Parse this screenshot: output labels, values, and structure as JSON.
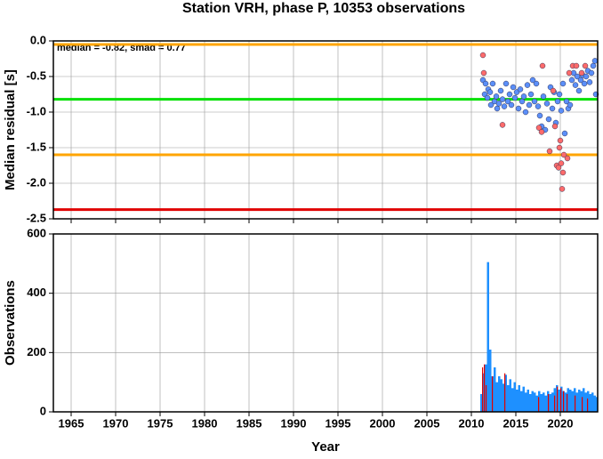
{
  "chart_data": [
    {
      "type": "scatter",
      "title": "Station VRH, phase P, 10353 observations",
      "ylabel": "Median residual [s]",
      "annotation": "median = -0.82, smad = 0.77",
      "xlim": [
        1963,
        2024.2
      ],
      "xticks": [
        1965,
        1970,
        1975,
        1980,
        1985,
        1990,
        1995,
        2000,
        2005,
        2010,
        2015,
        2020
      ],
      "ylim": [
        -2.5,
        0
      ],
      "yticks": [
        {
          "value": 0,
          "label": "0.0"
        },
        -0.5,
        {
          "value": -1,
          "label": "-1.0"
        },
        -1.5,
        {
          "value": -2,
          "label": "-2.0"
        },
        -2.5
      ],
      "grid": true,
      "reference_lines": [
        {
          "value": -0.05,
          "color": "#ffa500"
        },
        {
          "value": -0.82,
          "color": "#00e000"
        },
        {
          "value": -1.6,
          "color": "#ffa500"
        },
        {
          "value": -2.37,
          "color": "#e00000"
        }
      ],
      "series": [
        {
          "color": "#5b8ff9",
          "x": [
            2011.3,
            2011.5,
            2011.6,
            2011.8,
            2011.9,
            2012.1,
            2012.2,
            2012.4,
            2012.6,
            2012.8,
            2012.9,
            2013.1,
            2013.3,
            2013.5,
            2013.7,
            2013.9,
            2014.1,
            2014.3,
            2014.5,
            2014.7,
            2014.9,
            2015.1,
            2015.3,
            2015.5,
            2015.7,
            2015.9,
            2016.1,
            2016.3,
            2016.5,
            2016.7,
            2016.9,
            2017.1,
            2017.3,
            2017.5,
            2017.7,
            2017.9,
            2018.1,
            2018.3,
            2018.5,
            2018.7,
            2018.9,
            2019.1,
            2019.3,
            2019.5,
            2019.7,
            2019.9,
            2020.1,
            2020.3,
            2020.5,
            2020.7,
            2020.9,
            2021.1,
            2021.3,
            2021.5,
            2021.7,
            2021.9,
            2022.1,
            2022.3,
            2022.5,
            2022.7,
            2022.9,
            2023.1,
            2023.3,
            2023.5,
            2023.7,
            2023.9,
            2024.0
          ],
          "values": [
            -0.55,
            -0.75,
            -0.6,
            -0.8,
            -0.68,
            -0.72,
            -0.9,
            -0.6,
            -0.85,
            -0.78,
            -0.95,
            -0.88,
            -0.7,
            -0.82,
            -0.92,
            -0.6,
            -0.85,
            -0.75,
            -0.9,
            -0.65,
            -0.8,
            -0.72,
            -0.95,
            -0.68,
            -0.85,
            -0.78,
            -1.0,
            -0.62,
            -0.9,
            -0.75,
            -0.55,
            -0.85,
            -0.6,
            -0.92,
            -1.05,
            -1.2,
            -0.78,
            -1.25,
            -0.88,
            -1.1,
            -0.65,
            -0.95,
            -0.72,
            -1.15,
            -0.85,
            -0.75,
            -0.98,
            -0.6,
            -1.3,
            -0.85,
            -0.95,
            -0.9,
            -0.55,
            -0.45,
            -0.62,
            -0.5,
            -0.7,
            -0.55,
            -0.48,
            -0.6,
            -0.5,
            -0.42,
            -0.58,
            -0.45,
            -0.35,
            -0.28,
            -0.75
          ]
        },
        {
          "color": "#ff6b6b",
          "x": [
            2011.3,
            2011.4,
            2013.5,
            2017.6,
            2017.9,
            2018.0,
            2018.8,
            2019.2,
            2019.4,
            2019.6,
            2019.8,
            2019.9,
            2020.0,
            2020.1,
            2020.2,
            2020.3,
            2020.4,
            2020.8,
            2021.0,
            2021.4,
            2021.8,
            2022.4,
            2022.8
          ],
          "values": [
            -0.2,
            -0.45,
            -1.18,
            -1.22,
            -1.28,
            -0.35,
            -1.55,
            -0.7,
            -1.2,
            -1.75,
            -1.78,
            -1.5,
            -1.4,
            -1.72,
            -2.08,
            -1.85,
            -1.6,
            -1.65,
            -0.45,
            -0.35,
            -0.35,
            -0.45,
            -0.35
          ]
        }
      ]
    },
    {
      "type": "bar",
      "ylabel": "Observations",
      "xlabel": "Year",
      "xlim": [
        1963,
        2024.2
      ],
      "xticks": [
        1965,
        1970,
        1975,
        1980,
        1985,
        1990,
        1995,
        2000,
        2005,
        2010,
        2015,
        2020
      ],
      "ylim": [
        0,
        600
      ],
      "yticks": [
        0,
        200,
        400,
        600
      ],
      "grid": true,
      "series": [
        {
          "color": "#1e90ff",
          "width": 0.25,
          "x": [
            2011.0,
            2011.25,
            2011.5,
            2011.75,
            2012.0,
            2012.25,
            2012.5,
            2012.75,
            2013.0,
            2013.25,
            2013.5,
            2013.75,
            2014.0,
            2014.25,
            2014.5,
            2014.75,
            2015.0,
            2015.25,
            2015.5,
            2015.75,
            2016.0,
            2016.25,
            2016.5,
            2016.75,
            2017.0,
            2017.25,
            2017.5,
            2017.75,
            2018.0,
            2018.25,
            2018.5,
            2018.75,
            2019.0,
            2019.25,
            2019.5,
            2019.75,
            2020.0,
            2020.25,
            2020.5,
            2020.75,
            2021.0,
            2021.25,
            2021.5,
            2021.75,
            2022.0,
            2022.25,
            2022.5,
            2022.75,
            2023.0,
            2023.25,
            2023.5,
            2023.75,
            2024.0
          ],
          "values": [
            60,
            130,
            160,
            505,
            210,
            120,
            150,
            100,
            120,
            110,
            95,
            125,
            90,
            110,
            80,
            100,
            75,
            90,
            70,
            85,
            65,
            75,
            60,
            70,
            65,
            55,
            70,
            60,
            65,
            55,
            70,
            60,
            65,
            80,
            90,
            75,
            85,
            70,
            65,
            80,
            75,
            70,
            80,
            65,
            75,
            70,
            80,
            65,
            70,
            60,
            65,
            55,
            50
          ]
        },
        {
          "color": "#e00000",
          "width": 0.12,
          "x": [
            2011.2,
            2011.4,
            2011.6,
            2012.3,
            2013.7,
            2017.5,
            2018.6,
            2019.3,
            2019.6,
            2020.0,
            2020.3,
            2020.7,
            2021.6,
            2022.4,
            2023.0
          ],
          "values": [
            150,
            160,
            90,
            120,
            130,
            50,
            60,
            55,
            85,
            80,
            70,
            60,
            55,
            50,
            45
          ]
        }
      ]
    }
  ]
}
